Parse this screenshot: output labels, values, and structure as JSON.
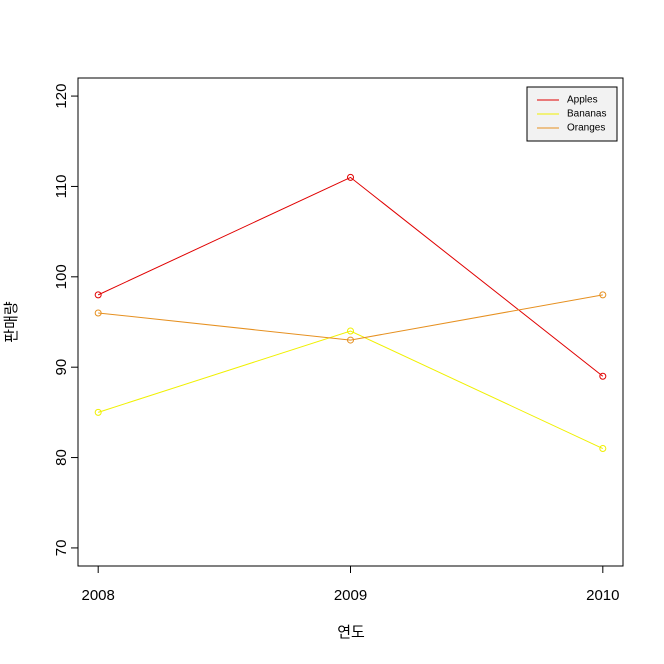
{
  "chart_data": {
    "type": "line",
    "x": [
      2008,
      2009,
      2010
    ],
    "xlabel": "연도",
    "ylabel": "판매량",
    "series": [
      {
        "name": "Apples",
        "color": "#e00000",
        "values": [
          98,
          111,
          89
        ]
      },
      {
        "name": "Bananas",
        "color": "#f0f000",
        "values": [
          85,
          94,
          81
        ]
      },
      {
        "name": "Oranges",
        "color": "#e69020",
        "values": [
          96,
          93,
          98
        ]
      }
    ],
    "xlim": [
      2007.92,
      2010.08
    ],
    "xticks": [
      2008,
      2009,
      2010
    ],
    "ylim": [
      68,
      122
    ],
    "yticks": [
      70,
      80,
      90,
      100,
      110,
      120
    ],
    "legend": "top-right"
  }
}
